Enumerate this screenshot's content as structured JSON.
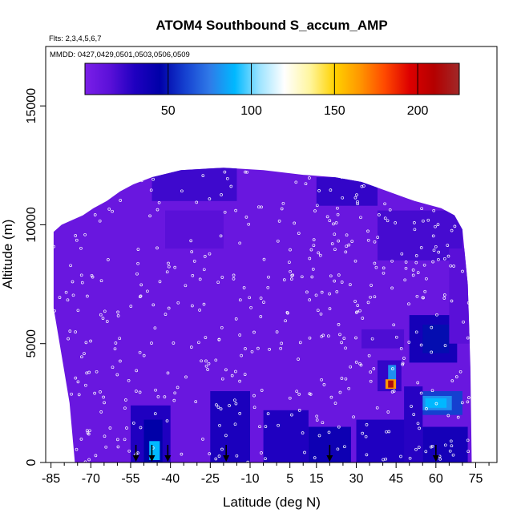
{
  "chart_data": {
    "type": "heatmap",
    "title": "ATOM4 Southbound S_accum_AMP",
    "flights_note": "Flts: 2,3,4,5,6,7",
    "dates_note": "MMDD: 0427,0429,0501,0503,0506,0509",
    "xlabel": "Latitude (deg N)",
    "ylabel": "Altitude (m)",
    "xlim": [
      -87,
      83
    ],
    "ylim": [
      0,
      17500
    ],
    "x_ticks": [
      -85,
      -70,
      -55,
      -40,
      -25,
      -10,
      5,
      15,
      30,
      45,
      60,
      75
    ],
    "x_tick_labels": [
      "-85",
      "-70",
      "-55",
      "-40",
      "-25",
      "-10",
      "5",
      "15",
      "30",
      "45",
      "60",
      "75"
    ],
    "x_minor_ticks": [
      -80,
      -75,
      -65,
      -60,
      -50,
      -45,
      -35,
      -30,
      -20,
      -15,
      -5,
      0,
      10,
      20,
      25,
      35,
      40,
      50,
      55,
      65,
      70,
      80
    ],
    "y_ticks": [
      0,
      5000,
      10000,
      15000
    ],
    "y_tick_labels": [
      "0",
      "5000",
      "10000",
      "15000"
    ],
    "colorbar": {
      "range": [
        0,
        225
      ],
      "ticks": [
        50,
        100,
        150,
        200
      ],
      "tick_labels": [
        "50",
        "100",
        "150",
        "200"
      ],
      "colors": [
        "#7b1fe8",
        "#5a10d8",
        "#1f00c0",
        "#0000a8",
        "#1540d0",
        "#2f7ae8",
        "#00b8ff",
        "#9ee4ff",
        "#ffffff",
        "#fff6a0",
        "#ffd200",
        "#ff9800",
        "#ff4a00",
        "#dd0000",
        "#b40000",
        "#a02828"
      ]
    },
    "background_value": 8,
    "domain_top_profile": [
      [
        -84,
        9700
      ],
      [
        -81,
        10000
      ],
      [
        -77,
        10200
      ],
      [
        -73,
        10400
      ],
      [
        -69,
        10700
      ],
      [
        -64,
        11000
      ],
      [
        -59,
        11400
      ],
      [
        -54,
        11700
      ],
      [
        -47,
        12000
      ],
      [
        -36,
        12300
      ],
      [
        -20,
        12400
      ],
      [
        -5,
        12300
      ],
      [
        10,
        12100
      ],
      [
        22,
        12000
      ],
      [
        32,
        11800
      ],
      [
        42,
        11400
      ],
      [
        52,
        11000
      ],
      [
        62,
        10700
      ],
      [
        67,
        10400
      ],
      [
        70,
        9800
      ],
      [
        72,
        7500
      ],
      [
        73,
        4000
      ]
    ],
    "domain_bottom_left": [
      [
        -84,
        9700
      ],
      [
        -84,
        6500
      ],
      [
        -81,
        4500
      ],
      [
        -78,
        2500
      ],
      [
        -76,
        0
      ]
    ],
    "features": [
      {
        "lat": [
          -47,
          -15
        ],
        "alt": [
          11000,
          12400
        ],
        "value": 22
      },
      {
        "lat": [
          15,
          38
        ],
        "alt": [
          10800,
          12000
        ],
        "value": 25
      },
      {
        "lat": [
          38,
          70
        ],
        "alt": [
          8500,
          10600
        ],
        "value": 20
      },
      {
        "lat": [
          -42,
          -20
        ],
        "alt": [
          9000,
          10600
        ],
        "value": 15
      },
      {
        "lat": [
          50,
          68
        ],
        "alt": [
          4200,
          6200
        ],
        "value": 35
      },
      {
        "lat": [
          55,
          65
        ],
        "alt": [
          4600,
          5800
        ],
        "value": 48
      },
      {
        "lat": [
          32,
          48
        ],
        "alt": [
          4800,
          5600
        ],
        "value": 18
      },
      {
        "lat": [
          38,
          47
        ],
        "alt": [
          3000,
          4300
        ],
        "value": 25
      },
      {
        "lat": [
          42,
          45
        ],
        "alt": [
          3400,
          4100
        ],
        "value": 80
      },
      {
        "lat": [
          41,
          45
        ],
        "alt": [
          3100,
          3500
        ],
        "value": 165
      },
      {
        "lat": [
          42,
          44
        ],
        "alt": [
          3150,
          3450
        ],
        "value": 215
      },
      {
        "lat": [
          52,
          70
        ],
        "alt": [
          2000,
          3000
        ],
        "value": 60
      },
      {
        "lat": [
          54,
          66
        ],
        "alt": [
          2200,
          2800
        ],
        "value": 80
      },
      {
        "lat": [
          56,
          64
        ],
        "alt": [
          2300,
          2700
        ],
        "value": 90
      },
      {
        "lat": [
          -55,
          -40
        ],
        "alt": [
          0,
          2400
        ],
        "value": 30
      },
      {
        "lat": [
          -50,
          -43
        ],
        "alt": [
          0,
          1800
        ],
        "value": 45
      },
      {
        "lat": [
          -48,
          -44
        ],
        "alt": [
          100,
          900
        ],
        "value": 90
      },
      {
        "lat": [
          -25,
          -10
        ],
        "alt": [
          0,
          3000
        ],
        "value": 32
      },
      {
        "lat": [
          -5,
          12
        ],
        "alt": [
          0,
          2200
        ],
        "value": 30
      },
      {
        "lat": [
          12,
          28
        ],
        "alt": [
          0,
          1500
        ],
        "value": 38
      },
      {
        "lat": [
          30,
          50
        ],
        "alt": [
          0,
          1800
        ],
        "value": 30
      },
      {
        "lat": [
          48,
          55
        ],
        "alt": [
          0,
          3200
        ],
        "value": 28
      },
      {
        "lat": [
          55,
          72
        ],
        "alt": [
          0,
          1500
        ],
        "value": 35
      },
      {
        "lat": [
          65,
          73
        ],
        "alt": [
          5000,
          9000
        ],
        "value": 15
      }
    ],
    "arrows_lat": [
      -53,
      -47,
      -41,
      -19,
      20,
      60
    ]
  }
}
